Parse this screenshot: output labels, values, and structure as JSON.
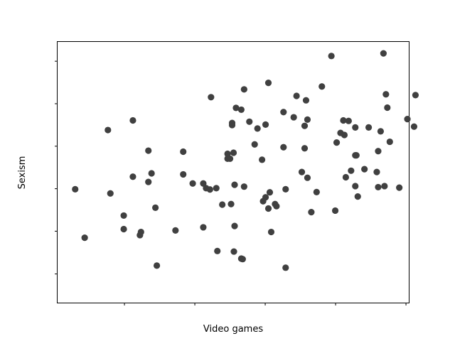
{
  "chart_data": {
    "type": "scatter",
    "xlabel": "Video games",
    "ylabel": "Sexism",
    "xlim": [
      0,
      100
    ],
    "ylim": [
      0,
      100
    ],
    "x_ticks": [
      19,
      39,
      59,
      79,
      99
    ],
    "y_ticks": [
      11,
      27.4,
      43.7,
      60,
      76.3,
      92.6
    ],
    "grid": false,
    "legend": "none",
    "marker_color": "#404040",
    "points": [
      {
        "x": 5,
        "y": 43.5
      },
      {
        "x": 7.7,
        "y": 24.9
      },
      {
        "x": 14.3,
        "y": 66.2
      },
      {
        "x": 15,
        "y": 41.9
      },
      {
        "x": 18.8,
        "y": 33.4
      },
      {
        "x": 18.8,
        "y": 28.2
      },
      {
        "x": 21.4,
        "y": 69.9
      },
      {
        "x": 21.4,
        "y": 48.3
      },
      {
        "x": 23.7,
        "y": 27.1
      },
      {
        "x": 23.4,
        "y": 25.9
      },
      {
        "x": 25.8,
        "y": 58.3
      },
      {
        "x": 25.8,
        "y": 46.3
      },
      {
        "x": 26.7,
        "y": 49.6
      },
      {
        "x": 27.8,
        "y": 36.4
      },
      {
        "x": 28.2,
        "y": 14.2
      },
      {
        "x": 33.5,
        "y": 27.7
      },
      {
        "x": 35.7,
        "y": 57.9
      },
      {
        "x": 35.7,
        "y": 49.2
      },
      {
        "x": 38.4,
        "y": 45.7
      },
      {
        "x": 41.4,
        "y": 45.7
      },
      {
        "x": 41.4,
        "y": 28.9
      },
      {
        "x": 42.2,
        "y": 43.9
      },
      {
        "x": 43.3,
        "y": 43.4
      },
      {
        "x": 43.6,
        "y": 78.8
      },
      {
        "x": 45.1,
        "y": 43.9
      },
      {
        "x": 45.4,
        "y": 19.8
      },
      {
        "x": 46.8,
        "y": 37.6
      },
      {
        "x": 48.3,
        "y": 57.1
      },
      {
        "x": 48.3,
        "y": 55.2
      },
      {
        "x": 49,
        "y": 55.2
      },
      {
        "x": 49.3,
        "y": 37.8
      },
      {
        "x": 49.6,
        "y": 68.9
      },
      {
        "x": 49.6,
        "y": 68.1
      },
      {
        "x": 50,
        "y": 57.5
      },
      {
        "x": 50.3,
        "y": 45.2
      },
      {
        "x": 50.3,
        "y": 29.4
      },
      {
        "x": 50.1,
        "y": 19.6
      },
      {
        "x": 50.7,
        "y": 74.7
      },
      {
        "x": 52.2,
        "y": 16.9
      },
      {
        "x": 52.2,
        "y": 74
      },
      {
        "x": 52.6,
        "y": 16.7
      },
      {
        "x": 53,
        "y": 44.5
      },
      {
        "x": 53,
        "y": 81.8
      },
      {
        "x": 54.5,
        "y": 69.4
      },
      {
        "x": 56,
        "y": 60.7
      },
      {
        "x": 56.8,
        "y": 66.8
      },
      {
        "x": 58.1,
        "y": 54.8
      },
      {
        "x": 58.4,
        "y": 38.9
      },
      {
        "x": 59.1,
        "y": 68.3
      },
      {
        "x": 59.1,
        "y": 40.4
      },
      {
        "x": 59.9,
        "y": 84.3
      },
      {
        "x": 59.9,
        "y": 36.1
      },
      {
        "x": 60.3,
        "y": 42.3
      },
      {
        "x": 60.7,
        "y": 27.1
      },
      {
        "x": 61.8,
        "y": 37.8
      },
      {
        "x": 62.2,
        "y": 37
      },
      {
        "x": 64.2,
        "y": 73.1
      },
      {
        "x": 64.2,
        "y": 59.6
      },
      {
        "x": 64.8,
        "y": 43.5
      },
      {
        "x": 64.8,
        "y": 13.4
      },
      {
        "x": 67.1,
        "y": 71.1
      },
      {
        "x": 67.9,
        "y": 79.3
      },
      {
        "x": 69.4,
        "y": 50.1
      },
      {
        "x": 70.2,
        "y": 67.8
      },
      {
        "x": 70.2,
        "y": 59.2
      },
      {
        "x": 70.6,
        "y": 77.6
      },
      {
        "x": 71,
        "y": 70.2
      },
      {
        "x": 71,
        "y": 47.9
      },
      {
        "x": 72.1,
        "y": 34.7
      },
      {
        "x": 73.6,
        "y": 42.4
      },
      {
        "x": 75.1,
        "y": 82.9
      },
      {
        "x": 77.8,
        "y": 94.6
      },
      {
        "x": 78.9,
        "y": 35.3
      },
      {
        "x": 79.3,
        "y": 61.4
      },
      {
        "x": 80.4,
        "y": 65.1
      },
      {
        "x": 81.2,
        "y": 69.9
      },
      {
        "x": 81.5,
        "y": 64.3
      },
      {
        "x": 81.9,
        "y": 48.1
      },
      {
        "x": 82.7,
        "y": 69.7
      },
      {
        "x": 83.4,
        "y": 50.6
      },
      {
        "x": 84.6,
        "y": 67.2
      },
      {
        "x": 84.6,
        "y": 56.5
      },
      {
        "x": 84.6,
        "y": 44.7
      },
      {
        "x": 84.9,
        "y": 56.5
      },
      {
        "x": 85.3,
        "y": 40.7
      },
      {
        "x": 87.2,
        "y": 51.2
      },
      {
        "x": 88.4,
        "y": 67.2
      },
      {
        "x": 90.7,
        "y": 50.1
      },
      {
        "x": 91.1,
        "y": 44.3
      },
      {
        "x": 91.1,
        "y": 58.1
      },
      {
        "x": 91.8,
        "y": 65.7
      },
      {
        "x": 92.6,
        "y": 95.6
      },
      {
        "x": 92.9,
        "y": 44.7
      },
      {
        "x": 93.3,
        "y": 79.9
      },
      {
        "x": 93.7,
        "y": 74.8
      },
      {
        "x": 94.4,
        "y": 61.7
      },
      {
        "x": 97.1,
        "y": 44.1
      },
      {
        "x": 99.4,
        "y": 70.4
      },
      {
        "x": 101.3,
        "y": 67.5
      },
      {
        "x": 101.7,
        "y": 79.6
      }
    ]
  }
}
